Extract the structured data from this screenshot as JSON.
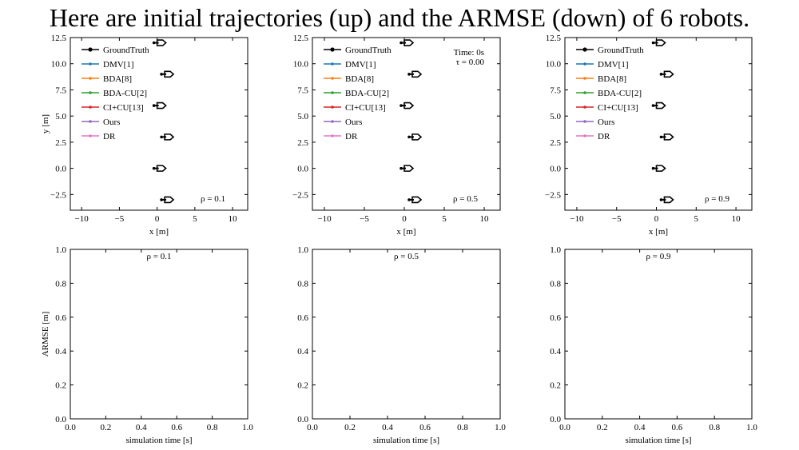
{
  "title": "Here are initial trajectories (up) and the ARMSE (down) of 6 robots.",
  "colors": {
    "GroundTruth": "#000000",
    "DMV[1]": "#1f77b4",
    "BDA[8]": "#ff7f0e",
    "BDA-CU[2]": "#2ca02c",
    "CI+CU[13]": "#d62728",
    "Ours": "#9467bd",
    "DR": "#e377c2"
  },
  "chart_data": [
    {
      "type": "scatter",
      "panel": "trajectory",
      "xlabel": "x [m]",
      "ylabel": "y [m]",
      "xlim": [
        -11.5,
        12
      ],
      "ylim": [
        -4,
        12.5
      ],
      "xticks": [
        -10,
        -5,
        0,
        5,
        10
      ],
      "xtick_labels": [
        "−10",
        "−5",
        "0",
        "5",
        "10"
      ],
      "yticks": [
        -2.5,
        0.0,
        2.5,
        5.0,
        7.5,
        10.0,
        12.5
      ],
      "ytick_labels": [
        "−2.5",
        "0.0",
        "2.5",
        "5.0",
        "7.5",
        "10.0",
        "12.5"
      ],
      "legend": [
        "GroundTruth",
        "DMV[1]",
        "BDA[8]",
        "BDA-CU[2]",
        "CI+CU[13]",
        "Ours",
        "DR"
      ],
      "legend_position": "upper-left",
      "annotation": "ρ = 0.1",
      "series": [
        {
          "name": "GroundTruth",
          "x": [
            0,
            1,
            0,
            1,
            0,
            1
          ],
          "y": [
            12,
            9,
            6,
            3,
            0,
            -3
          ]
        }
      ]
    },
    {
      "type": "scatter",
      "panel": "trajectory",
      "xlabel": "x [m]",
      "ylabel": "",
      "xlim": [
        -11.5,
        12
      ],
      "ylim": [
        -4,
        12.5
      ],
      "xticks": [
        -10,
        -5,
        0,
        5,
        10
      ],
      "xtick_labels": [
        "−10",
        "−5",
        "0",
        "5",
        "10"
      ],
      "yticks": [
        -2.5,
        0.0,
        2.5,
        5.0,
        7.5,
        10.0,
        12.5
      ],
      "ytick_labels": [
        "−2.5",
        "0.0",
        "2.5",
        "5.0",
        "7.5",
        "10.0",
        "12.5"
      ],
      "legend": [
        "GroundTruth",
        "DMV[1]",
        "BDA[8]",
        "BDA-CU[2]",
        "CI+CU[13]",
        "Ours",
        "DR"
      ],
      "legend_position": "upper-left",
      "time_text": [
        "Time: 0s",
        "τ = 0.00"
      ],
      "annotation": "ρ = 0.5",
      "series": [
        {
          "name": "GroundTruth",
          "x": [
            0,
            1,
            0,
            1,
            0,
            1
          ],
          "y": [
            12,
            9,
            6,
            3,
            0,
            -3
          ]
        }
      ]
    },
    {
      "type": "scatter",
      "panel": "trajectory",
      "xlabel": "x [m]",
      "ylabel": "",
      "xlim": [
        -11.5,
        12
      ],
      "ylim": [
        -4,
        12.5
      ],
      "xticks": [
        -10,
        -5,
        0,
        5,
        10
      ],
      "xtick_labels": [
        "−10",
        "−5",
        "0",
        "5",
        "10"
      ],
      "yticks": [
        -2.5,
        0.0,
        2.5,
        5.0,
        7.5,
        10.0,
        12.5
      ],
      "ytick_labels": [
        "−2.5",
        "0.0",
        "2.5",
        "5.0",
        "7.5",
        "10.0",
        "12.5"
      ],
      "legend": [
        "GroundTruth",
        "DMV[1]",
        "BDA[8]",
        "BDA-CU[2]",
        "CI+CU[13]",
        "Ours",
        "DR"
      ],
      "legend_position": "upper-left",
      "annotation": "ρ = 0.9",
      "series": [
        {
          "name": "GroundTruth",
          "x": [
            0,
            1,
            0,
            1,
            0,
            1
          ],
          "y": [
            12,
            9,
            6,
            3,
            0,
            -3
          ]
        }
      ]
    },
    {
      "type": "line",
      "panel": "armse",
      "xlabel": "simulation time [s]",
      "ylabel": "ARMSE [m]",
      "xlim": [
        0,
        1
      ],
      "ylim": [
        0,
        1
      ],
      "xticks": [
        0,
        0.2,
        0.4,
        0.6,
        0.8,
        1.0
      ],
      "xtick_labels": [
        "0.0",
        "0.2",
        "0.4",
        "0.6",
        "0.8",
        "1.0"
      ],
      "yticks": [
        0,
        0.2,
        0.4,
        0.6,
        0.8,
        1.0
      ],
      "ytick_labels": [
        "0.0",
        "0.2",
        "0.4",
        "0.6",
        "0.8",
        "1.0"
      ],
      "annotation": "ρ = 0.1",
      "series": []
    },
    {
      "type": "line",
      "panel": "armse",
      "xlabel": "simulation time [s]",
      "ylabel": "",
      "xlim": [
        0,
        1
      ],
      "ylim": [
        0,
        1
      ],
      "xticks": [
        0,
        0.2,
        0.4,
        0.6,
        0.8,
        1.0
      ],
      "xtick_labels": [
        "0.0",
        "0.2",
        "0.4",
        "0.6",
        "0.8",
        "1.0"
      ],
      "yticks": [
        0,
        0.2,
        0.4,
        0.6,
        0.8,
        1.0
      ],
      "ytick_labels": [
        "0.0",
        "0.2",
        "0.4",
        "0.6",
        "0.8",
        "1.0"
      ],
      "annotation": "ρ = 0.5",
      "series": []
    },
    {
      "type": "line",
      "panel": "armse",
      "xlabel": "simulation time [s]",
      "ylabel": "",
      "xlim": [
        0,
        1
      ],
      "ylim": [
        0,
        1
      ],
      "xticks": [
        0,
        0.2,
        0.4,
        0.6,
        0.8,
        1.0
      ],
      "xtick_labels": [
        "0.0",
        "0.2",
        "0.4",
        "0.6",
        "0.8",
        "1.0"
      ],
      "yticks": [
        0,
        0.2,
        0.4,
        0.6,
        0.8,
        1.0
      ],
      "ytick_labels": [
        "0.0",
        "0.2",
        "0.4",
        "0.6",
        "0.8",
        "1.0"
      ],
      "annotation": "ρ = 0.9",
      "series": []
    }
  ]
}
